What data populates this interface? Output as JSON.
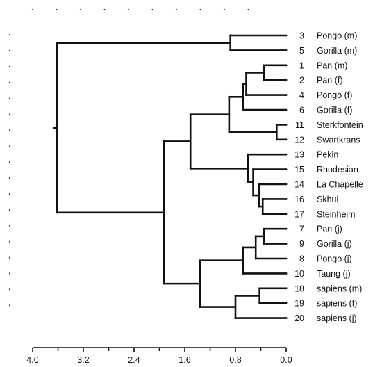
{
  "chart_data": {
    "type": "dendrogram",
    "axis": {
      "min": 0.0,
      "max": 4.0,
      "reversed": true,
      "tick_labels": [
        "4.0",
        "3.2",
        "2.4",
        "1.6",
        "0.8",
        "0.0"
      ],
      "tick_values": [
        4.0,
        3.2,
        2.4,
        1.6,
        0.8,
        0.0
      ],
      "minor_step": 0.4
    },
    "leaves": [
      {
        "id": "L3",
        "num": "3",
        "label": "Pongo (m)"
      },
      {
        "id": "L5",
        "num": "5",
        "label": "Gorilla (m)"
      },
      {
        "id": "L1",
        "num": "1",
        "label": "Pan (m)"
      },
      {
        "id": "L2",
        "num": "2",
        "label": "Pan (f)"
      },
      {
        "id": "L4",
        "num": "4",
        "label": "Pongo (f)"
      },
      {
        "id": "L6",
        "num": "6",
        "label": "Gorilla (f)"
      },
      {
        "id": "L11",
        "num": "11",
        "label": "Sterkfontein"
      },
      {
        "id": "L12",
        "num": "12",
        "label": "Swartkrans"
      },
      {
        "id": "L13",
        "num": "13",
        "label": "Pekin"
      },
      {
        "id": "L15",
        "num": "15",
        "label": "Rhodesian"
      },
      {
        "id": "L14",
        "num": "14",
        "label": "La Chapelle"
      },
      {
        "id": "L16",
        "num": "16",
        "label": "Skhul"
      },
      {
        "id": "L17",
        "num": "17",
        "label": "Steinheim"
      },
      {
        "id": "L7",
        "num": "7",
        "label": "Pan (j)"
      },
      {
        "id": "L9",
        "num": "9",
        "label": "Gorilla (j)"
      },
      {
        "id": "L8",
        "num": "8",
        "label": "Pongo (j)"
      },
      {
        "id": "L10",
        "num": "10",
        "label": "Taung (j)"
      },
      {
        "id": "L18",
        "num": "18",
        "label": "sapiens (m)"
      },
      {
        "id": "L19",
        "num": "19",
        "label": "sapiens (f)"
      },
      {
        "id": "L20",
        "num": "20",
        "label": "sapiens (j)"
      }
    ],
    "merges": [
      {
        "id": "m1",
        "children": [
          "L1",
          "L2"
        ],
        "height": 0.35
      },
      {
        "id": "m2",
        "children": [
          "m1",
          "L4"
        ],
        "height": 0.63
      },
      {
        "id": "m3",
        "children": [
          "m2",
          "L6"
        ],
        "height": 0.68
      },
      {
        "id": "m4",
        "children": [
          "L11",
          "L12"
        ],
        "height": 0.15
      },
      {
        "id": "m5",
        "children": [
          "m3",
          "m4"
        ],
        "height": 0.9
      },
      {
        "id": "m6",
        "children": [
          "L16",
          "L17"
        ],
        "height": 0.37
      },
      {
        "id": "m7",
        "children": [
          "L14",
          "m6"
        ],
        "height": 0.43
      },
      {
        "id": "m8",
        "children": [
          "L15",
          "m7"
        ],
        "height": 0.52
      },
      {
        "id": "m9",
        "children": [
          "L13",
          "m8"
        ],
        "height": 0.6
      },
      {
        "id": "m10",
        "children": [
          "m5",
          "m9"
        ],
        "height": 1.51
      },
      {
        "id": "m11",
        "children": [
          "L3",
          "L5"
        ],
        "height": 0.88
      },
      {
        "id": "m12",
        "children": [
          "L7",
          "L9"
        ],
        "height": 0.35
      },
      {
        "id": "m13",
        "children": [
          "m12",
          "L8"
        ],
        "height": 0.48
      },
      {
        "id": "m14",
        "children": [
          "m13",
          "L10"
        ],
        "height": 0.68
      },
      {
        "id": "m15",
        "children": [
          "L18",
          "L19"
        ],
        "height": 0.42
      },
      {
        "id": "m16",
        "children": [
          "m15",
          "L20"
        ],
        "height": 0.8
      },
      {
        "id": "m17",
        "children": [
          "m14",
          "m16"
        ],
        "height": 1.36
      },
      {
        "id": "m18",
        "children": [
          "m10",
          "m17"
        ],
        "height": 1.93
      },
      {
        "id": "m19",
        "children": [
          "m11",
          "m18"
        ],
        "height": 3.62
      }
    ]
  }
}
